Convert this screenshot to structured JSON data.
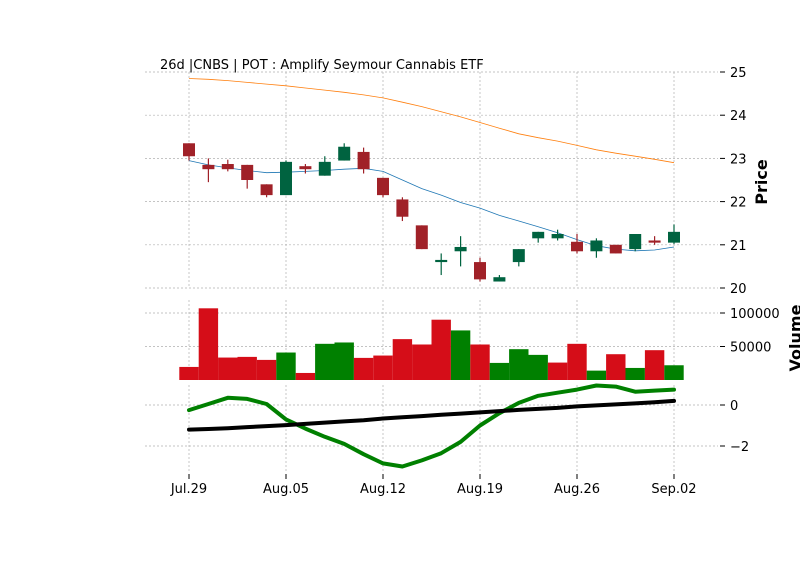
{
  "chart_data": [
    {
      "type": "candlestick",
      "panel": "price",
      "title": "26d |CNBS | POT : Amplify Seymour Cannabis ETF",
      "ylabel": "Price",
      "ylim": [
        20,
        25
      ],
      "yticks": [
        20,
        21,
        22,
        23,
        24,
        25
      ],
      "grid": true,
      "x_tick_labels": [
        "Jul.29",
        "Aug.05",
        "Aug.12",
        "Aug.19",
        "Aug.26",
        "Sep.02"
      ],
      "x_tick_indices": [
        0,
        5,
        10,
        15,
        20,
        25
      ],
      "colors": {
        "up": "#006340",
        "down": "#a02128",
        "ma_fast": "#1f77b4",
        "ma_slow": "#ff7f0e"
      },
      "candles": [
        {
          "o": 23.35,
          "h": 23.35,
          "l": 22.95,
          "c": 23.05
        },
        {
          "o": 22.85,
          "h": 23.0,
          "l": 22.45,
          "c": 22.75
        },
        {
          "o": 22.87,
          "h": 22.97,
          "l": 22.7,
          "c": 22.75
        },
        {
          "o": 22.85,
          "h": 22.85,
          "l": 22.3,
          "c": 22.5
        },
        {
          "o": 22.4,
          "h": 22.4,
          "l": 22.1,
          "c": 22.15
        },
        {
          "o": 22.15,
          "h": 22.95,
          "l": 22.15,
          "c": 22.92
        },
        {
          "o": 22.82,
          "h": 22.87,
          "l": 22.65,
          "c": 22.75
        },
        {
          "o": 22.6,
          "h": 23.05,
          "l": 22.6,
          "c": 22.92
        },
        {
          "o": 22.95,
          "h": 23.35,
          "l": 22.95,
          "c": 23.27
        },
        {
          "o": 23.15,
          "h": 23.25,
          "l": 22.65,
          "c": 22.75
        },
        {
          "o": 22.55,
          "h": 22.55,
          "l": 22.1,
          "c": 22.15
        },
        {
          "o": 22.05,
          "h": 22.1,
          "l": 21.55,
          "c": 21.65
        },
        {
          "o": 21.45,
          "h": 21.45,
          "l": 20.9,
          "c": 20.9
        },
        {
          "o": 20.6,
          "h": 20.8,
          "l": 20.3,
          "c": 20.65
        },
        {
          "o": 20.85,
          "h": 21.2,
          "l": 20.5,
          "c": 20.95
        },
        {
          "o": 20.6,
          "h": 20.7,
          "l": 20.15,
          "c": 20.2
        },
        {
          "o": 20.15,
          "h": 20.3,
          "l": 20.15,
          "c": 20.25
        },
        {
          "o": 20.6,
          "h": 20.9,
          "l": 20.5,
          "c": 20.9
        },
        {
          "o": 21.15,
          "h": 21.3,
          "l": 21.05,
          "c": 21.3
        },
        {
          "o": 21.15,
          "h": 21.35,
          "l": 21.1,
          "c": 21.25
        },
        {
          "o": 21.07,
          "h": 21.25,
          "l": 20.8,
          "c": 20.85
        },
        {
          "o": 20.85,
          "h": 21.15,
          "l": 20.7,
          "c": 21.1
        },
        {
          "o": 21.0,
          "h": 21.0,
          "l": 20.8,
          "c": 20.8
        },
        {
          "o": 20.9,
          "h": 21.25,
          "l": 20.85,
          "c": 21.25
        },
        {
          "o": 21.1,
          "h": 21.2,
          "l": 21.0,
          "c": 21.05
        },
        {
          "o": 21.05,
          "h": 21.47,
          "l": 21.02,
          "c": 21.3
        }
      ],
      "ma_fast": [
        22.95,
        22.85,
        22.78,
        22.72,
        22.67,
        22.68,
        22.7,
        22.72,
        22.75,
        22.77,
        22.7,
        22.5,
        22.3,
        22.15,
        21.98,
        21.85,
        21.68,
        21.55,
        21.42,
        21.28,
        21.12,
        20.98,
        20.9,
        20.86,
        20.88,
        20.95
      ],
      "ma_slow": [
        24.85,
        24.83,
        24.8,
        24.76,
        24.72,
        24.68,
        24.63,
        24.58,
        24.53,
        24.47,
        24.4,
        24.3,
        24.2,
        24.08,
        23.96,
        23.83,
        23.7,
        23.57,
        23.48,
        23.4,
        23.3,
        23.2,
        23.12,
        23.05,
        22.98,
        22.9
      ]
    },
    {
      "type": "bar",
      "panel": "volume",
      "ylabel": "Volume",
      "yticks": [
        50000,
        100000
      ],
      "ytick_labels": [
        "50000",
        "100000"
      ],
      "ylim": [
        0,
        110000
      ],
      "grid": true,
      "values": [
        19500,
        107000,
        33500,
        34500,
        30000,
        41000,
        10500,
        54000,
        56000,
        33000,
        36500,
        61000,
        53000,
        90000,
        74000,
        53000,
        25500,
        46000,
        37500,
        26000,
        54000,
        14000,
        38500,
        18000,
        44500,
        22000
      ],
      "colors": [
        "#d50d18",
        "#d50d18",
        "#d50d18",
        "#d50d18",
        "#d50d18",
        "#008000",
        "#d50d18",
        "#008000",
        "#008000",
        "#d50d18",
        "#d50d18",
        "#d50d18",
        "#d50d18",
        "#d50d18",
        "#008000",
        "#d50d18",
        "#008000",
        "#008000",
        "#008000",
        "#d50d18",
        "#d50d18",
        "#008000",
        "#d50d18",
        "#008000",
        "#d50d18",
        "#008000"
      ]
    },
    {
      "type": "line",
      "panel": "indicator",
      "ylim": [
        -3.2,
        1.3
      ],
      "yticks": [
        -2,
        0
      ],
      "ytick_labels": [
        "−2",
        "0"
      ],
      "grid": true,
      "series": [
        {
          "color": "#008000",
          "values": [
            -0.25,
            0.05,
            0.35,
            0.3,
            0.05,
            -0.7,
            -1.15,
            -1.55,
            -1.9,
            -2.4,
            -2.85,
            -3.0,
            -2.7,
            -2.35,
            -1.8,
            -1.0,
            -0.4,
            0.1,
            0.45,
            0.6,
            0.75,
            0.95,
            0.9,
            0.65,
            0.7,
            0.75
          ]
        },
        {
          "color": "#000000",
          "values": [
            -1.2,
            -1.17,
            -1.13,
            -1.08,
            -1.03,
            -0.98,
            -0.92,
            -0.86,
            -0.8,
            -0.74,
            -0.66,
            -0.6,
            -0.54,
            -0.48,
            -0.42,
            -0.36,
            -0.3,
            -0.24,
            -0.19,
            -0.14,
            -0.07,
            -0.02,
            0.03,
            0.08,
            0.13,
            0.2
          ]
        }
      ]
    }
  ]
}
